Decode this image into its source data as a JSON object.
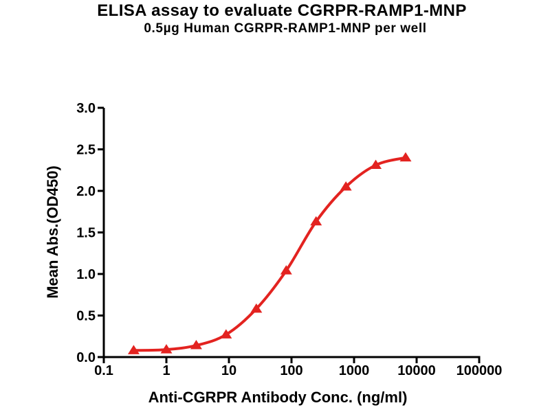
{
  "title": "ELISA assay to evaluate CGRPR-RAMP1-MNP",
  "subtitle": "0.5µg Human CGRPR-RAMP1-MNP per well",
  "chart_data": {
    "type": "line",
    "x_scale": "log",
    "xlabel": "Anti-CGRPR Antibody Conc. (ng/ml)",
    "ylabel": "Mean Abs.(OD450)",
    "xlim": [
      0.1,
      100000
    ],
    "ylim": [
      0,
      3
    ],
    "grid": false,
    "legend": "none",
    "background_color": "#ffffff",
    "axis_color": "#000000",
    "x_ticks": [
      {
        "value": 0.1,
        "label": "0.1"
      },
      {
        "value": 1,
        "label": "1"
      },
      {
        "value": 10,
        "label": "10"
      },
      {
        "value": 100,
        "label": "100"
      },
      {
        "value": 1000,
        "label": "1000"
      },
      {
        "value": 10000,
        "label": "10000"
      },
      {
        "value": 100000,
        "label": "100000"
      }
    ],
    "y_ticks": [
      {
        "value": 0,
        "label": "0.0"
      },
      {
        "value": 0.5,
        "label": "0.5"
      },
      {
        "value": 1,
        "label": "1.0"
      },
      {
        "value": 1.5,
        "label": "1.5"
      },
      {
        "value": 2,
        "label": "2.0"
      },
      {
        "value": 2.5,
        "label": "2.5"
      },
      {
        "value": 3,
        "label": "3.0"
      }
    ],
    "series": [
      {
        "name": "CGRPR-RAMP1-MNP",
        "color": "#e32320",
        "marker": "filled-triangle-up",
        "x": [
          0.3,
          1,
          3,
          9,
          27.4,
          82.3,
          247,
          741,
          2222,
          6667
        ],
        "y": [
          0.08,
          0.09,
          0.14,
          0.27,
          0.58,
          1.04,
          1.63,
          2.05,
          2.31,
          2.4
        ]
      }
    ]
  }
}
